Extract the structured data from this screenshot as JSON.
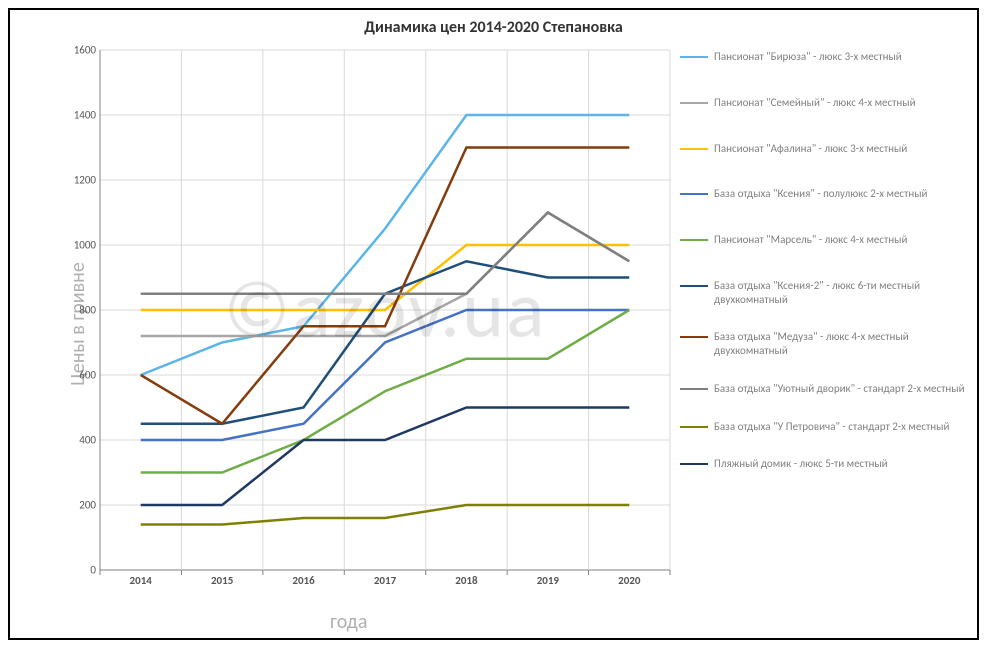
{
  "title": "Динамика цен 2014-2020 Степановка",
  "yaxis_label": "Цены в гривне",
  "xaxis_label": "года",
  "watermark": "©azov.ua",
  "background_color": "#ffffff",
  "border_color": "#000000",
  "grid_color": "#d9d9d9",
  "tick_color": "#555555",
  "label_color": "#b0b0b0",
  "title_color": "#333333",
  "title_fontsize": 16,
  "axis_label_fontsize": 20,
  "legend_fontsize": 11,
  "tick_fontsize": 11,
  "x_categories": [
    "2014",
    "2015",
    "2016",
    "2017",
    "2018",
    "2019",
    "2020"
  ],
  "ylim": [
    0,
    1600
  ],
  "ytick_step": 200,
  "line_width": 2.5,
  "series": [
    {
      "name": "Пансионат \"Бирюза\" - люкс 3-х местный",
      "color": "#5bb5e8",
      "values": [
        600,
        700,
        750,
        1050,
        1400,
        1400,
        1400
      ]
    },
    {
      "name": "Пансионат \"Семейный\" - люкс 4-х местный",
      "color": "#a6a6a6",
      "values": [
        720,
        720,
        720,
        720,
        850,
        1100,
        950
      ]
    },
    {
      "name": "Пансионат \"Афалина\" -  люкс 3-х местный",
      "color": "#ffc000",
      "values": [
        800,
        800,
        800,
        800,
        1000,
        1000,
        1000
      ]
    },
    {
      "name": "База отдыха \"Ксения\" - полулюкс 2-х местный",
      "color": "#4472c4",
      "values": [
        400,
        400,
        450,
        700,
        800,
        800,
        800
      ]
    },
    {
      "name": "Пансионат \"Марсель\" - люкс 4-х местный",
      "color": "#70ad47",
      "values": [
        300,
        300,
        400,
        550,
        650,
        650,
        800
      ]
    },
    {
      "name": "База отдыха \"Ксения-2\" - люкс 6-ти местный двухкомнатный",
      "color": "#1f4e79",
      "values": [
        450,
        450,
        500,
        850,
        950,
        900,
        900
      ]
    },
    {
      "name": "База отдыха \"Медуза\" - люкс 4-х местный двухкомнатный",
      "color": "#843c0c",
      "values": [
        600,
        450,
        750,
        750,
        1300,
        1300,
        1300
      ]
    },
    {
      "name": "База отдыха \"Уютный дворик\" - стандарт 2-х местный",
      "color": "#7f7f7f",
      "values": [
        850,
        850,
        850,
        850,
        850,
        1100,
        950
      ]
    },
    {
      "name": "База отдыха \"У Петровича\" - стандарт 2-х местный",
      "color": "#808000",
      "values": [
        140,
        140,
        160,
        160,
        200,
        200,
        200
      ]
    },
    {
      "name": "Пляжный домик - люкс 5-ти местный",
      "color": "#203864",
      "values": [
        200,
        200,
        400,
        400,
        500,
        500,
        500
      ]
    }
  ]
}
